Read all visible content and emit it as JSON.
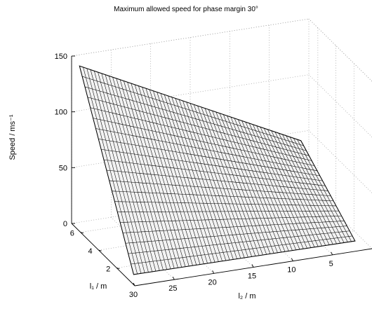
{
  "chart_data": {
    "type": "surface",
    "title": "Maximum allowed speed for phase margin 30°",
    "zlabel": "Speed / ms⁻¹",
    "xlabel": "l₁ / m",
    "ylabel": "l₂ / m",
    "z_ticks": [
      "0",
      "50",
      "100",
      "150"
    ],
    "x_ticks": [
      "2",
      "4",
      "6"
    ],
    "y_ticks": [
      "30",
      "25",
      "20",
      "15",
      "10",
      "5"
    ],
    "zlim": [
      0,
      150
    ],
    "xlim": [
      0,
      7
    ],
    "ylim": [
      0,
      30
    ],
    "grid": true,
    "surface": {
      "l1_range": [
        1,
        7
      ],
      "l2_range": [
        1,
        29
      ],
      "corner_speeds": [
        {
          "l1": 1,
          "l2": 29,
          "speed": 1
        },
        {
          "l1": 1,
          "l2": 1,
          "speed": 0
        },
        {
          "l1": 7,
          "l2": 1,
          "speed": 42
        },
        {
          "l1": 7,
          "l2": 29,
          "speed": 140
        }
      ]
    }
  }
}
